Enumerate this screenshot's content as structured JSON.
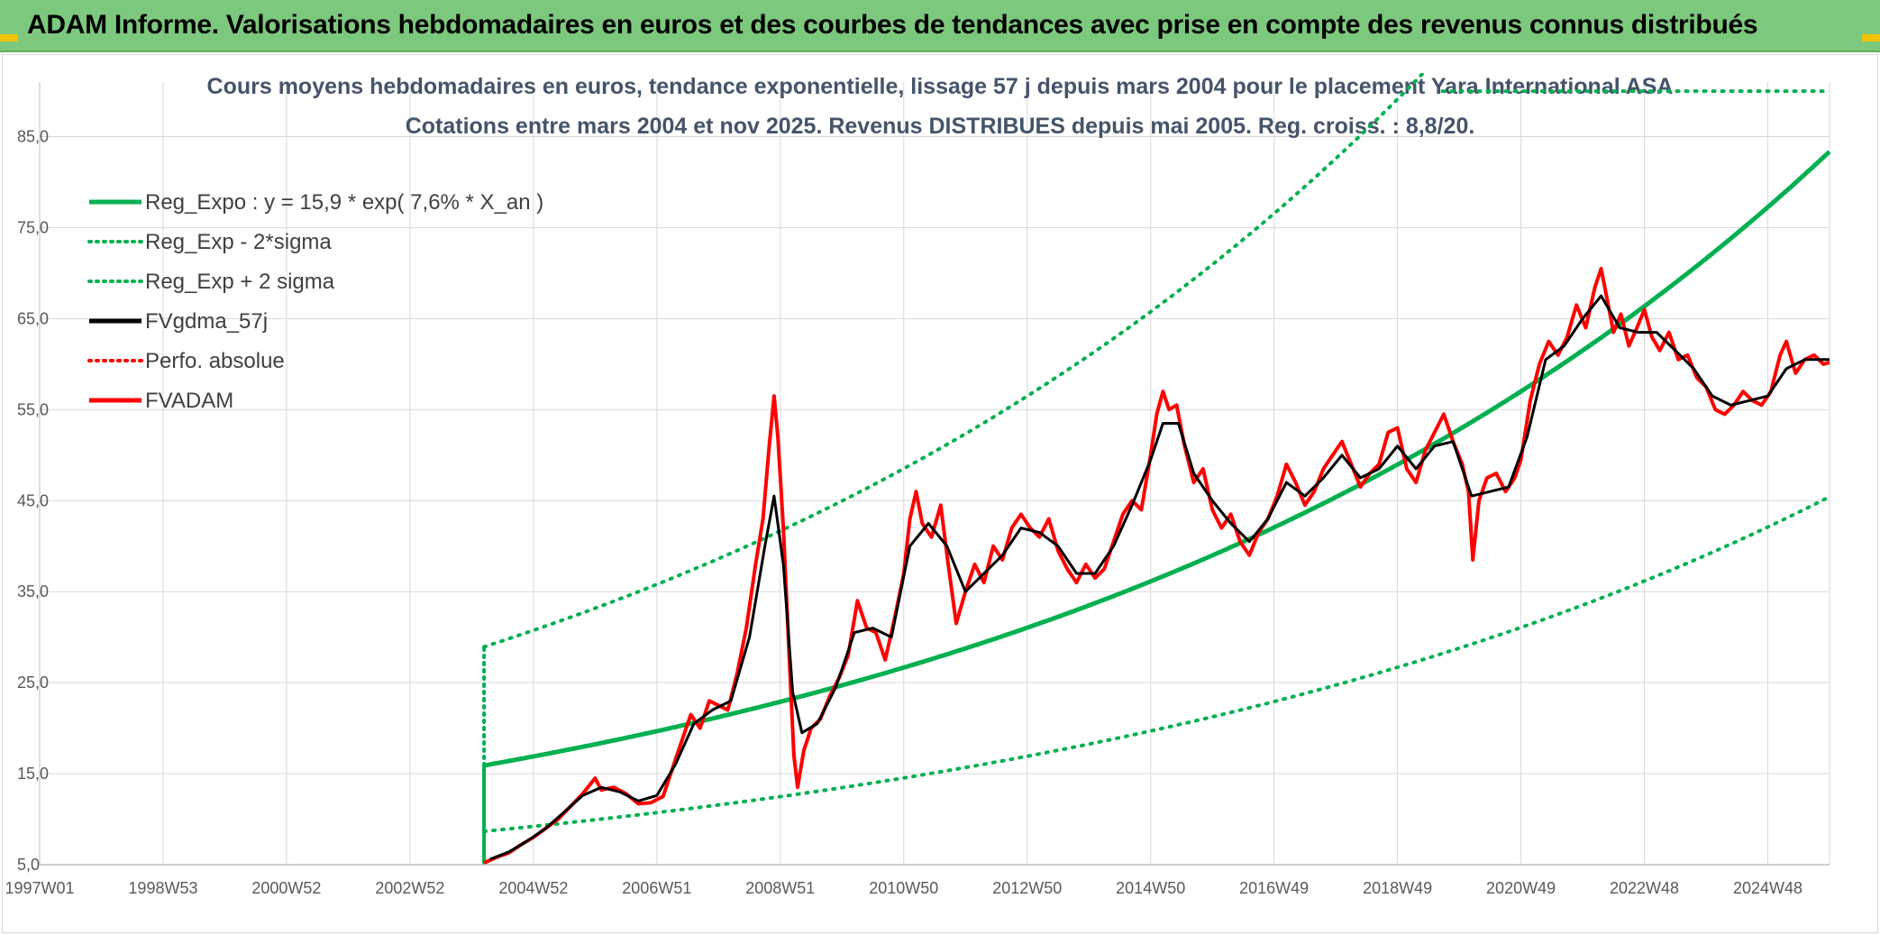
{
  "banner": {
    "title": "ADAM Informe. Valorisations hebdomadaires en euros et des courbes de tendances avec prise en compte des revenus connus distribués"
  },
  "colors": {
    "banner_bg": "#7cc87c",
    "reg_green": "#00b050",
    "black": "#000000",
    "red": "#ff0000",
    "grid": "#d9d9d9"
  },
  "chart_data": {
    "type": "line",
    "title_lines": [
      "Cours moyens hebdomadaires en euros, tendance exponentielle, lissage 57 j depuis mars 2004 pour le placement Yara International ASA",
      "Cotations entre mars 2004 et nov 2025. Revenus DISTRIBUES depuis mai 2005. Reg. croiss. : 8,8/20."
    ],
    "x_axis": {
      "labels": [
        "1997W01",
        "1998W53",
        "2000W52",
        "2002W52",
        "2004W52",
        "2006W51",
        "2008W51",
        "2010W50",
        "2012W50",
        "2014W50",
        "2016W49",
        "2018W49",
        "2020W49",
        "2022W48",
        "2024W48"
      ],
      "label_years": [
        1997.0,
        1999.0,
        2001.0,
        2003.0,
        2005.0,
        2007.0,
        2009.0,
        2011.0,
        2013.0,
        2015.0,
        2017.0,
        2019.0,
        2021.0,
        2023.0,
        2025.0
      ],
      "range": [
        1997.0,
        2026.0
      ]
    },
    "y_axis": {
      "labels": [
        "5,0",
        "15,0",
        "25,0",
        "35,0",
        "45,0",
        "55,0",
        "65,0",
        "75,0",
        "85,0"
      ],
      "ticks": [
        5,
        15,
        25,
        35,
        45,
        55,
        65,
        75,
        85
      ],
      "range": [
        5,
        91
      ]
    },
    "legend": {
      "position": "top-left",
      "entries": [
        {
          "name": "Reg_Expo : y = 15,9 * exp( 7,6% *  X_an )",
          "color": "#00b050",
          "style": "solid"
        },
        {
          "name": "Reg_Exp - 2*sigma",
          "color": "#00b050",
          "style": "dotted"
        },
        {
          "name": "Reg_Exp + 2 sigma",
          "color": "#00b050",
          "style": "dotted"
        },
        {
          "name": "FVgdma_57j",
          "color": "#000000",
          "style": "solid"
        },
        {
          "name": "Perfo. absolue",
          "color": "#ff0000",
          "style": "dotted"
        },
        {
          "name": "FVADAM",
          "color": "#ff0000",
          "style": "solid"
        }
      ]
    },
    "regression": {
      "start_year": 2004.2,
      "end_year": 2026.0,
      "base": 15.9,
      "rate": 0.076,
      "lower_factor": 0.545,
      "upper_factor": 1.82
    },
    "series": [
      {
        "name": "FVADAM",
        "color": "#ff0000",
        "points": [
          [
            2004.2,
            5.2
          ],
          [
            2004.4,
            5.8
          ],
          [
            2004.6,
            6.3
          ],
          [
            2004.8,
            7.2
          ],
          [
            2005.0,
            8.0
          ],
          [
            2005.2,
            9.0
          ],
          [
            2005.4,
            10.0
          ],
          [
            2005.6,
            11.4
          ],
          [
            2005.8,
            12.8
          ],
          [
            2006.0,
            14.5
          ],
          [
            2006.1,
            13.2
          ],
          [
            2006.3,
            13.5
          ],
          [
            2006.5,
            12.8
          ],
          [
            2006.7,
            11.7
          ],
          [
            2006.9,
            11.8
          ],
          [
            2007.1,
            12.5
          ],
          [
            2007.25,
            15.5
          ],
          [
            2007.4,
            18.5
          ],
          [
            2007.55,
            21.5
          ],
          [
            2007.7,
            20.0
          ],
          [
            2007.85,
            23.0
          ],
          [
            2008.0,
            22.5
          ],
          [
            2008.15,
            22.0
          ],
          [
            2008.3,
            26.0
          ],
          [
            2008.45,
            31.0
          ],
          [
            2008.6,
            38.0
          ],
          [
            2008.72,
            43.0
          ],
          [
            2008.82,
            51.0
          ],
          [
            2008.9,
            56.5
          ],
          [
            2008.96,
            52.0
          ],
          [
            2009.05,
            42.0
          ],
          [
            2009.15,
            27.0
          ],
          [
            2009.22,
            17.0
          ],
          [
            2009.28,
            13.5
          ],
          [
            2009.38,
            17.5
          ],
          [
            2009.5,
            20.0
          ],
          [
            2009.65,
            21.0
          ],
          [
            2009.8,
            23.5
          ],
          [
            2009.95,
            25.5
          ],
          [
            2010.1,
            28.0
          ],
          [
            2010.25,
            34.0
          ],
          [
            2010.4,
            31.0
          ],
          [
            2010.55,
            30.5
          ],
          [
            2010.7,
            27.5
          ],
          [
            2010.85,
            32.0
          ],
          [
            2011.0,
            37.0
          ],
          [
            2011.1,
            43.0
          ],
          [
            2011.2,
            46.0
          ],
          [
            2011.3,
            42.5
          ],
          [
            2011.45,
            41.0
          ],
          [
            2011.6,
            44.5
          ],
          [
            2011.72,
            38.0
          ],
          [
            2011.85,
            31.5
          ],
          [
            2012.0,
            35.0
          ],
          [
            2012.15,
            38.0
          ],
          [
            2012.3,
            36.0
          ],
          [
            2012.45,
            40.0
          ],
          [
            2012.6,
            38.5
          ],
          [
            2012.75,
            42.0
          ],
          [
            2012.9,
            43.5
          ],
          [
            2013.05,
            42.0
          ],
          [
            2013.2,
            41.0
          ],
          [
            2013.35,
            43.0
          ],
          [
            2013.5,
            39.5
          ],
          [
            2013.65,
            37.5
          ],
          [
            2013.8,
            36.0
          ],
          [
            2013.95,
            38.0
          ],
          [
            2014.1,
            36.5
          ],
          [
            2014.25,
            37.5
          ],
          [
            2014.4,
            40.5
          ],
          [
            2014.55,
            43.5
          ],
          [
            2014.7,
            45.0
          ],
          [
            2014.85,
            44.0
          ],
          [
            2015.0,
            50.0
          ],
          [
            2015.1,
            54.5
          ],
          [
            2015.2,
            57.0
          ],
          [
            2015.3,
            55.0
          ],
          [
            2015.42,
            55.5
          ],
          [
            2015.55,
            51.0
          ],
          [
            2015.7,
            47.0
          ],
          [
            2015.85,
            48.5
          ],
          [
            2016.0,
            44.0
          ],
          [
            2016.15,
            42.0
          ],
          [
            2016.3,
            43.5
          ],
          [
            2016.45,
            40.5
          ],
          [
            2016.6,
            39.0
          ],
          [
            2016.75,
            41.5
          ],
          [
            2016.9,
            43.0
          ],
          [
            2017.05,
            45.5
          ],
          [
            2017.2,
            49.0
          ],
          [
            2017.35,
            47.0
          ],
          [
            2017.5,
            44.5
          ],
          [
            2017.65,
            46.0
          ],
          [
            2017.8,
            48.5
          ],
          [
            2017.95,
            50.0
          ],
          [
            2018.1,
            51.5
          ],
          [
            2018.25,
            49.0
          ],
          [
            2018.4,
            46.5
          ],
          [
            2018.55,
            48.0
          ],
          [
            2018.7,
            49.0
          ],
          [
            2018.85,
            52.5
          ],
          [
            2019.0,
            53.0
          ],
          [
            2019.15,
            48.5
          ],
          [
            2019.3,
            47.0
          ],
          [
            2019.45,
            50.5
          ],
          [
            2019.6,
            52.5
          ],
          [
            2019.75,
            54.5
          ],
          [
            2019.9,
            51.5
          ],
          [
            2020.05,
            49.0
          ],
          [
            2020.15,
            46.0
          ],
          [
            2020.22,
            38.5
          ],
          [
            2020.32,
            45.0
          ],
          [
            2020.45,
            47.5
          ],
          [
            2020.6,
            48.0
          ],
          [
            2020.75,
            46.0
          ],
          [
            2020.9,
            47.5
          ],
          [
            2021.0,
            49.5
          ],
          [
            2021.15,
            56.0
          ],
          [
            2021.3,
            60.0
          ],
          [
            2021.45,
            62.5
          ],
          [
            2021.6,
            61.0
          ],
          [
            2021.75,
            63.0
          ],
          [
            2021.9,
            66.5
          ],
          [
            2022.05,
            64.0
          ],
          [
            2022.2,
            68.5
          ],
          [
            2022.3,
            70.5
          ],
          [
            2022.4,
            67.0
          ],
          [
            2022.5,
            63.5
          ],
          [
            2022.62,
            65.5
          ],
          [
            2022.75,
            62.0
          ],
          [
            2022.88,
            64.0
          ],
          [
            2023.0,
            66.0
          ],
          [
            2023.12,
            63.0
          ],
          [
            2023.25,
            61.5
          ],
          [
            2023.4,
            63.5
          ],
          [
            2023.55,
            60.5
          ],
          [
            2023.7,
            61.0
          ],
          [
            2023.85,
            58.5
          ],
          [
            2024.0,
            57.5
          ],
          [
            2024.15,
            55.0
          ],
          [
            2024.3,
            54.5
          ],
          [
            2024.45,
            55.5
          ],
          [
            2024.6,
            57.0
          ],
          [
            2024.75,
            56.0
          ],
          [
            2024.9,
            55.5
          ],
          [
            2025.05,
            57.0
          ],
          [
            2025.2,
            61.0
          ],
          [
            2025.3,
            62.5
          ],
          [
            2025.45,
            59.0
          ],
          [
            2025.6,
            60.5
          ],
          [
            2025.75,
            61.0
          ],
          [
            2025.9,
            60.0
          ],
          [
            2026.0,
            60.2
          ]
        ]
      },
      {
        "name": "FVgdma_57j",
        "color": "#000000",
        "points": [
          [
            2004.3,
            5.6
          ],
          [
            2004.6,
            6.4
          ],
          [
            2004.9,
            7.6
          ],
          [
            2005.2,
            9.0
          ],
          [
            2005.5,
            10.8
          ],
          [
            2005.8,
            12.6
          ],
          [
            2006.1,
            13.5
          ],
          [
            2006.4,
            13.0
          ],
          [
            2006.7,
            12.0
          ],
          [
            2007.0,
            12.6
          ],
          [
            2007.3,
            16.0
          ],
          [
            2007.6,
            20.5
          ],
          [
            2007.9,
            22.0
          ],
          [
            2008.2,
            23.0
          ],
          [
            2008.5,
            30.0
          ],
          [
            2008.75,
            40.0
          ],
          [
            2008.9,
            45.5
          ],
          [
            2009.05,
            38.0
          ],
          [
            2009.2,
            24.0
          ],
          [
            2009.35,
            19.5
          ],
          [
            2009.6,
            20.5
          ],
          [
            2009.9,
            24.5
          ],
          [
            2010.2,
            30.5
          ],
          [
            2010.5,
            31.0
          ],
          [
            2010.8,
            30.0
          ],
          [
            2011.1,
            40.0
          ],
          [
            2011.4,
            42.5
          ],
          [
            2011.7,
            40.0
          ],
          [
            2012.0,
            35.0
          ],
          [
            2012.3,
            37.0
          ],
          [
            2012.6,
            39.0
          ],
          [
            2012.9,
            42.0
          ],
          [
            2013.2,
            41.5
          ],
          [
            2013.5,
            40.0
          ],
          [
            2013.8,
            37.0
          ],
          [
            2014.1,
            37.0
          ],
          [
            2014.4,
            40.0
          ],
          [
            2014.7,
            44.5
          ],
          [
            2015.0,
            49.5
          ],
          [
            2015.2,
            53.5
          ],
          [
            2015.45,
            53.5
          ],
          [
            2015.7,
            48.0
          ],
          [
            2016.0,
            45.0
          ],
          [
            2016.3,
            42.5
          ],
          [
            2016.6,
            40.5
          ],
          [
            2016.9,
            43.0
          ],
          [
            2017.2,
            47.0
          ],
          [
            2017.5,
            45.5
          ],
          [
            2017.8,
            47.5
          ],
          [
            2018.1,
            50.0
          ],
          [
            2018.4,
            47.5
          ],
          [
            2018.7,
            48.5
          ],
          [
            2019.0,
            51.0
          ],
          [
            2019.3,
            48.5
          ],
          [
            2019.6,
            51.0
          ],
          [
            2019.9,
            51.5
          ],
          [
            2020.2,
            45.5
          ],
          [
            2020.5,
            46.0
          ],
          [
            2020.8,
            46.5
          ],
          [
            2021.1,
            52.0
          ],
          [
            2021.4,
            60.5
          ],
          [
            2021.7,
            62.0
          ],
          [
            2022.0,
            65.0
          ],
          [
            2022.3,
            67.5
          ],
          [
            2022.6,
            64.0
          ],
          [
            2022.9,
            63.5
          ],
          [
            2023.2,
            63.5
          ],
          [
            2023.5,
            61.5
          ],
          [
            2023.8,
            59.5
          ],
          [
            2024.1,
            56.5
          ],
          [
            2024.4,
            55.5
          ],
          [
            2024.7,
            56.0
          ],
          [
            2025.0,
            56.5
          ],
          [
            2025.3,
            59.5
          ],
          [
            2025.6,
            60.5
          ],
          [
            2026.0,
            60.5
          ]
        ]
      }
    ]
  }
}
